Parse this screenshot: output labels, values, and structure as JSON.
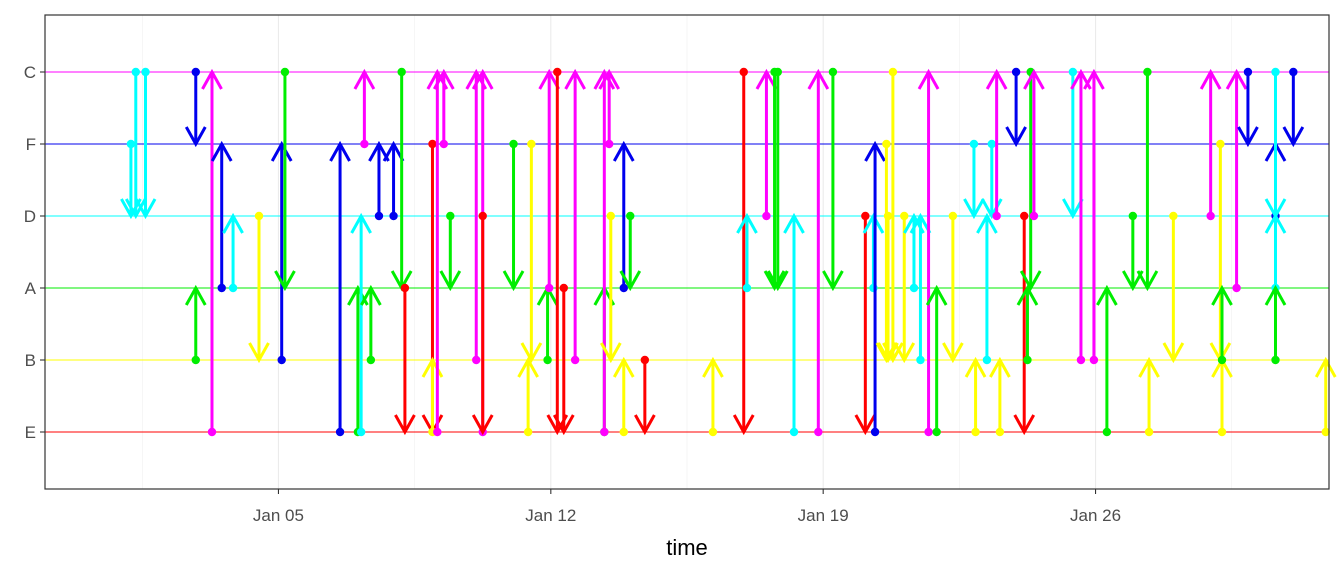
{
  "chart_data": {
    "type": "arrow-timeline",
    "xlabel": "time",
    "ylabel": "",
    "x_type": "date",
    "xlim": [
      "2024-12-30",
      "2025-02-01"
    ],
    "x_ticks": [
      {
        "date": "2025-01-05",
        "label": "Jan 05"
      },
      {
        "date": "2025-01-12",
        "label": "Jan 12"
      },
      {
        "date": "2025-01-19",
        "label": "Jan 19"
      },
      {
        "date": "2025-01-26",
        "label": "Jan 26"
      }
    ],
    "y_categories": [
      "E",
      "B",
      "A",
      "D",
      "F",
      "C"
    ],
    "grid": true,
    "legend": "none",
    "colors": {
      "E": "#ff0000",
      "B": "#ffff00",
      "A": "#00ee00",
      "D": "#00ffff",
      "F": "#0000ee",
      "C": "#ff00ff"
    },
    "transitions": [
      {
        "t": "2025-01-01T05:00",
        "from": "F",
        "to": "D"
      },
      {
        "t": "2025-01-01T08:00",
        "from": "C",
        "to": "D"
      },
      {
        "t": "2025-01-01T14:00",
        "from": "C",
        "to": "D"
      },
      {
        "t": "2025-01-02T21:00",
        "from": "C",
        "to": "F"
      },
      {
        "t": "2025-01-02T21:00",
        "from": "B",
        "to": "A"
      },
      {
        "t": "2025-01-03T07:00",
        "from": "E",
        "to": "C"
      },
      {
        "t": "2025-01-03T13:00",
        "from": "A",
        "to": "F"
      },
      {
        "t": "2025-01-03T20:00",
        "from": "A",
        "to": "D"
      },
      {
        "t": "2025-01-04T12:00",
        "from": "D",
        "to": "B"
      },
      {
        "t": "2025-01-05T02:00",
        "from": "B",
        "to": "F"
      },
      {
        "t": "2025-01-05T04:00",
        "from": "C",
        "to": "A"
      },
      {
        "t": "2025-01-06T14:00",
        "from": "E",
        "to": "F"
      },
      {
        "t": "2025-01-07T01:00",
        "from": "E",
        "to": "A"
      },
      {
        "t": "2025-01-07T03:00",
        "from": "E",
        "to": "D"
      },
      {
        "t": "2025-01-07T05:00",
        "from": "F",
        "to": "C"
      },
      {
        "t": "2025-01-07T09:00",
        "from": "B",
        "to": "A"
      },
      {
        "t": "2025-01-07T14:00",
        "from": "D",
        "to": "F"
      },
      {
        "t": "2025-01-07T23:00",
        "from": "D",
        "to": "F"
      },
      {
        "t": "2025-01-08T04:00",
        "from": "C",
        "to": "A"
      },
      {
        "t": "2025-01-08T06:00",
        "from": "A",
        "to": "E"
      },
      {
        "t": "2025-01-08T23:00",
        "from": "F",
        "to": "E"
      },
      {
        "t": "2025-01-08T23:00",
        "from": "E",
        "to": "B"
      },
      {
        "t": "2025-01-09T02:00",
        "from": "E",
        "to": "C"
      },
      {
        "t": "2025-01-09T06:00",
        "from": "F",
        "to": "C"
      },
      {
        "t": "2025-01-09T10:00",
        "from": "D",
        "to": "A"
      },
      {
        "t": "2025-01-10T02:00",
        "from": "B",
        "to": "C"
      },
      {
        "t": "2025-01-10T06:00",
        "from": "E",
        "to": "C"
      },
      {
        "t": "2025-01-10T06:00",
        "from": "D",
        "to": "E"
      },
      {
        "t": "2025-01-11T01:00",
        "from": "F",
        "to": "A"
      },
      {
        "t": "2025-01-11T10:00",
        "from": "E",
        "to": "B"
      },
      {
        "t": "2025-01-11T12:00",
        "from": "F",
        "to": "B"
      },
      {
        "t": "2025-01-11T22:00",
        "from": "B",
        "to": "A"
      },
      {
        "t": "2025-01-11T23:00",
        "from": "A",
        "to": "C"
      },
      {
        "t": "2025-01-12T04:00",
        "from": "C",
        "to": "E"
      },
      {
        "t": "2025-01-12T08:00",
        "from": "A",
        "to": "E"
      },
      {
        "t": "2025-01-12T15:00",
        "from": "B",
        "to": "C"
      },
      {
        "t": "2025-01-13T09:00",
        "from": "E",
        "to": "A"
      },
      {
        "t": "2025-01-13T09:00",
        "from": "E",
        "to": "C"
      },
      {
        "t": "2025-01-13T12:00",
        "from": "F",
        "to": "C"
      },
      {
        "t": "2025-01-13T13:00",
        "from": "D",
        "to": "B"
      },
      {
        "t": "2025-01-13T21:00",
        "from": "E",
        "to": "B"
      },
      {
        "t": "2025-01-13T21:00",
        "from": "A",
        "to": "F"
      },
      {
        "t": "2025-01-14T01:00",
        "from": "D",
        "to": "A"
      },
      {
        "t": "2025-01-14T10:00",
        "from": "B",
        "to": "E"
      },
      {
        "t": "2025-01-16T04:00",
        "from": "E",
        "to": "B"
      },
      {
        "t": "2025-01-16T23:00",
        "from": "C",
        "to": "E"
      },
      {
        "t": "2025-01-17T01:00",
        "from": "A",
        "to": "D"
      },
      {
        "t": "2025-01-17T13:00",
        "from": "D",
        "to": "C"
      },
      {
        "t": "2025-01-17T18:00",
        "from": "C",
        "to": "A"
      },
      {
        "t": "2025-01-17T20:00",
        "from": "C",
        "to": "A"
      },
      {
        "t": "2025-01-18T06:00",
        "from": "E",
        "to": "D"
      },
      {
        "t": "2025-01-18T21:00",
        "from": "E",
        "to": "C"
      },
      {
        "t": "2025-01-19T06:00",
        "from": "C",
        "to": "A"
      },
      {
        "t": "2025-01-20T02:00",
        "from": "D",
        "to": "E"
      },
      {
        "t": "2025-01-20T07:00",
        "from": "A",
        "to": "D"
      },
      {
        "t": "2025-01-20T08:00",
        "from": "E",
        "to": "F"
      },
      {
        "t": "2025-01-20T15:00",
        "from": "F",
        "to": "B"
      },
      {
        "t": "2025-01-20T16:00",
        "from": "D",
        "to": "B"
      },
      {
        "t": "2025-01-20T19:00",
        "from": "C",
        "to": "B"
      },
      {
        "t": "2025-01-21T02:00",
        "from": "D",
        "to": "B"
      },
      {
        "t": "2025-01-21T08:00",
        "from": "A",
        "to": "D"
      },
      {
        "t": "2025-01-21T12:00",
        "from": "B",
        "to": "D"
      },
      {
        "t": "2025-01-21T17:00",
        "from": "E",
        "to": "C"
      },
      {
        "t": "2025-01-21T22:00",
        "from": "E",
        "to": "A"
      },
      {
        "t": "2025-01-22T08:00",
        "from": "D",
        "to": "B"
      },
      {
        "t": "2025-01-22T21:00",
        "from": "F",
        "to": "D"
      },
      {
        "t": "2025-01-22T22:00",
        "from": "E",
        "to": "B"
      },
      {
        "t": "2025-01-23T05:00",
        "from": "B",
        "to": "D"
      },
      {
        "t": "2025-01-23T08:00",
        "from": "F",
        "to": "D"
      },
      {
        "t": "2025-01-23T11:00",
        "from": "D",
        "to": "C"
      },
      {
        "t": "2025-01-23T13:00",
        "from": "E",
        "to": "B"
      },
      {
        "t": "2025-01-23T23:00",
        "from": "C",
        "to": "F"
      },
      {
        "t": "2025-01-24T04:00",
        "from": "D",
        "to": "E"
      },
      {
        "t": "2025-01-24T06:00",
        "from": "B",
        "to": "A"
      },
      {
        "t": "2025-01-24T08:00",
        "from": "C",
        "to": "A"
      },
      {
        "t": "2025-01-24T10:00",
        "from": "D",
        "to": "C"
      },
      {
        "t": "2025-01-25T10:00",
        "from": "C",
        "to": "D"
      },
      {
        "t": "2025-01-25T15:00",
        "from": "B",
        "to": "C"
      },
      {
        "t": "2025-01-25T23:00",
        "from": "B",
        "to": "C"
      },
      {
        "t": "2025-01-26T07:00",
        "from": "E",
        "to": "A"
      },
      {
        "t": "2025-01-26T23:00",
        "from": "D",
        "to": "A"
      },
      {
        "t": "2025-01-27T08:00",
        "from": "C",
        "to": "A"
      },
      {
        "t": "2025-01-27T09:00",
        "from": "E",
        "to": "B"
      },
      {
        "t": "2025-01-28T00:00",
        "from": "D",
        "to": "B"
      },
      {
        "t": "2025-01-28T23:00",
        "from": "D",
        "to": "C"
      },
      {
        "t": "2025-01-29T05:00",
        "from": "F",
        "to": "B"
      },
      {
        "t": "2025-01-29T06:00",
        "from": "E",
        "to": "B"
      },
      {
        "t": "2025-01-29T06:00",
        "from": "B",
        "to": "A"
      },
      {
        "t": "2025-01-29T15:00",
        "from": "A",
        "to": "C"
      },
      {
        "t": "2025-01-29T22:00",
        "from": "C",
        "to": "F"
      },
      {
        "t": "2025-01-30T15:00",
        "from": "D",
        "to": "F"
      },
      {
        "t": "2025-01-30T15:00",
        "from": "A",
        "to": "D"
      },
      {
        "t": "2025-01-30T15:00",
        "from": "C",
        "to": "D"
      },
      {
        "t": "2025-01-30T15:00",
        "from": "B",
        "to": "A"
      },
      {
        "t": "2025-01-31T02:00",
        "from": "C",
        "to": "F"
      },
      {
        "t": "2025-01-31T22:00",
        "from": "E",
        "to": "B"
      }
    ]
  }
}
